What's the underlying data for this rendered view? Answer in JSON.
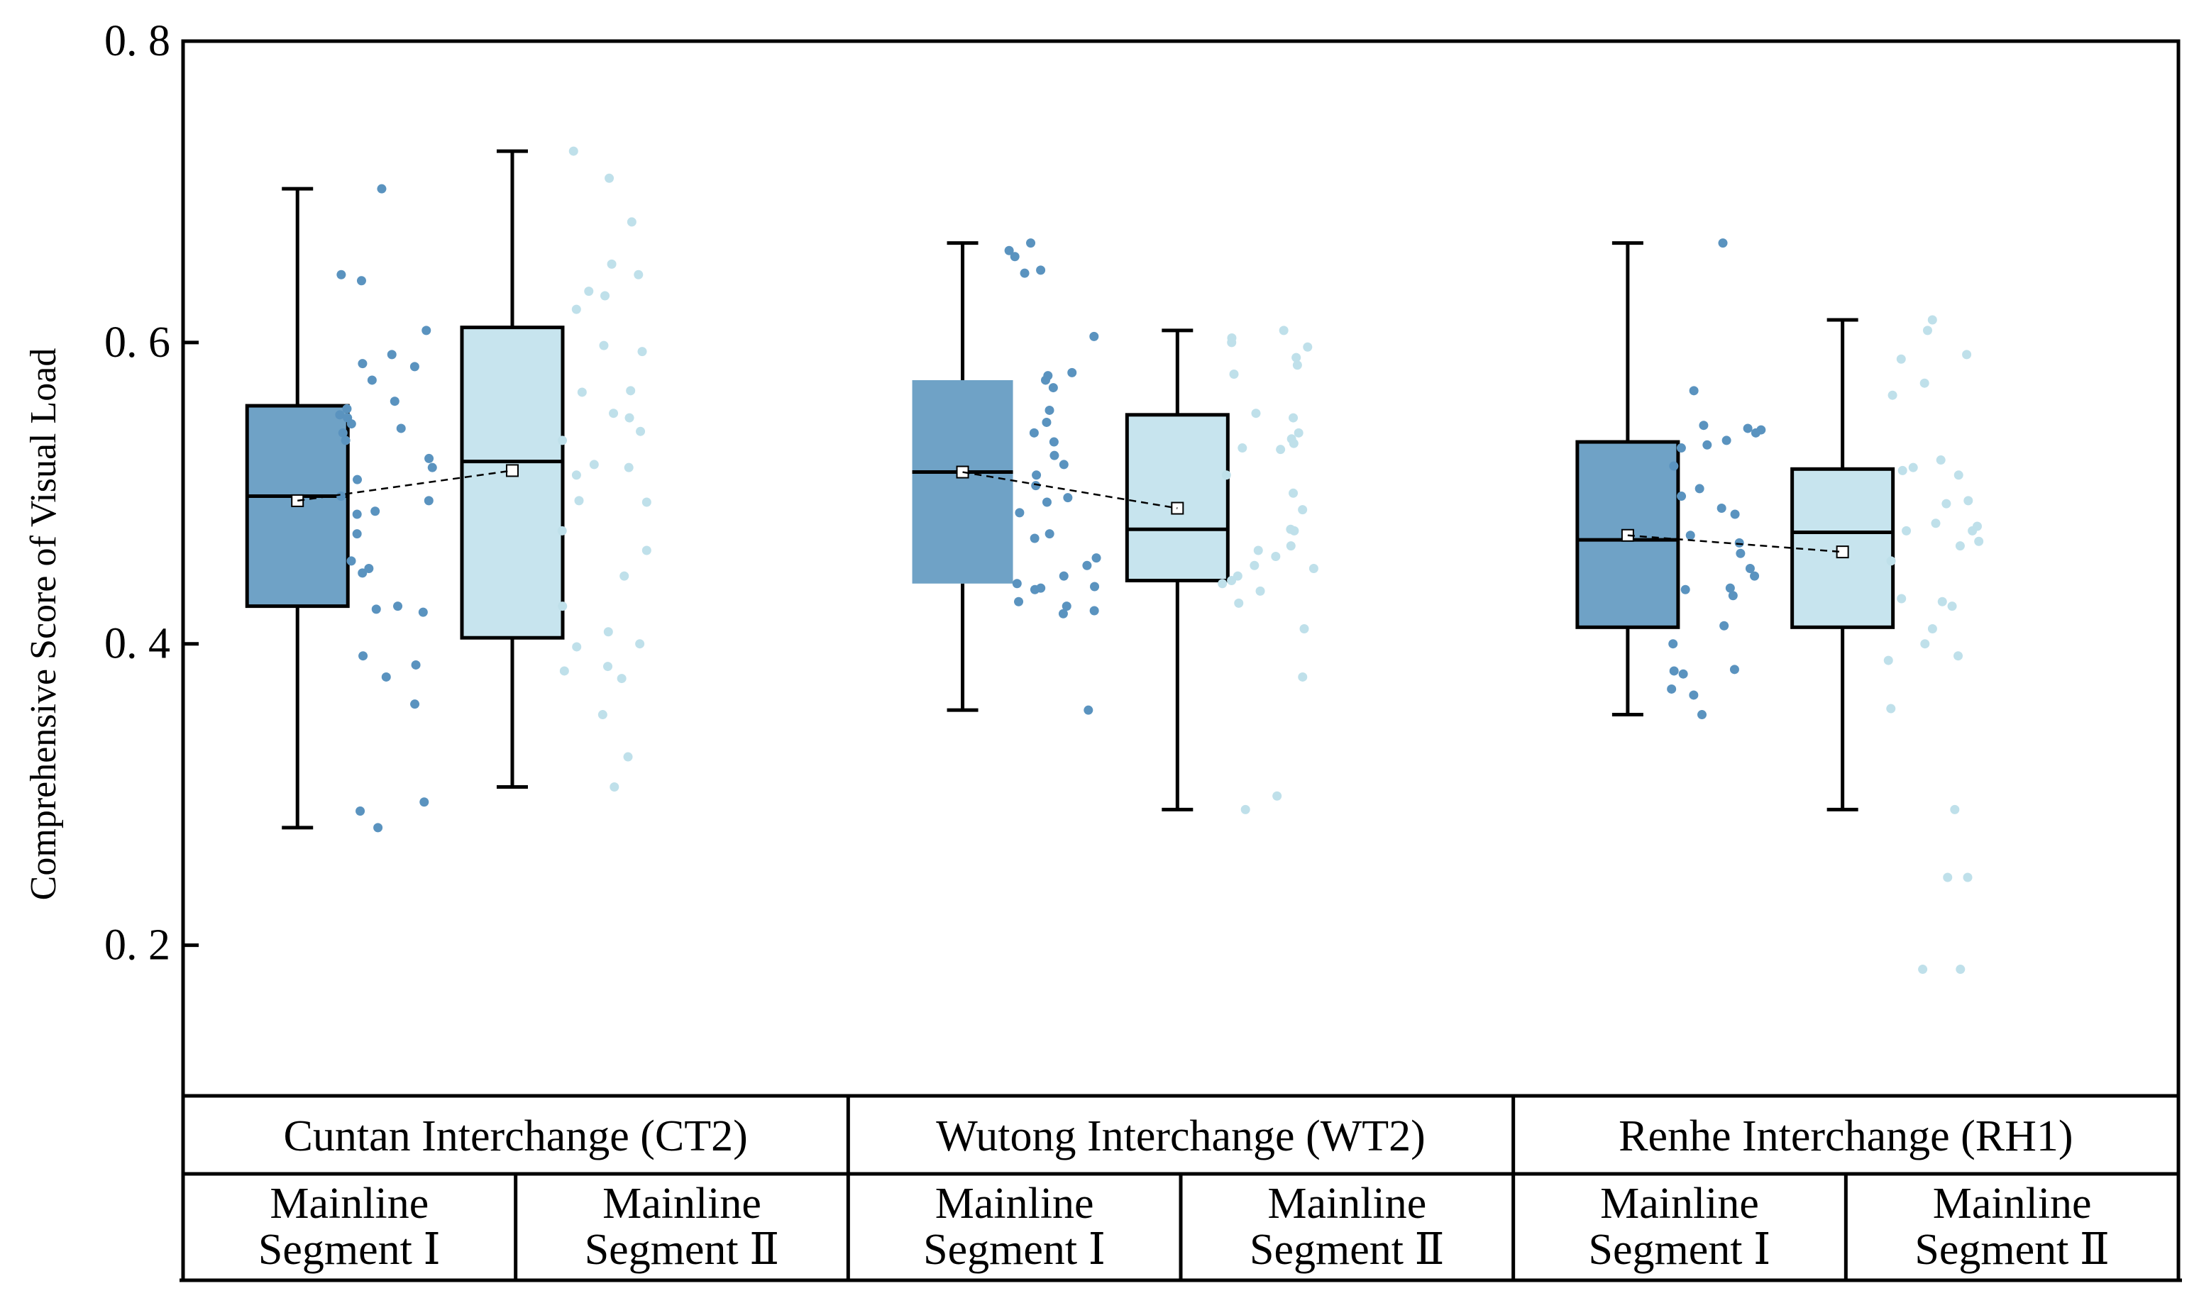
{
  "chart_data": {
    "type": "box",
    "ylabel": "Comprehensive Score of Visual Load",
    "ylim": [
      0.1,
      0.8
    ],
    "yticks": [
      0.2,
      0.4,
      0.6,
      0.8
    ],
    "ytick_labels": [
      "0. 2",
      "0. 4",
      "0. 6",
      "0. 8"
    ],
    "colors": {
      "segment_1": "#6fa2c6",
      "segment_2": "#c7e4ee",
      "points_segment_1": "#5a93bf",
      "points_segment_2": "#bfe0ea"
    },
    "groups": [
      {
        "label": "Cuntan Interchange (CT2)"
      },
      {
        "label": "Wutong Interchange (WT2)"
      },
      {
        "label": "Renhe Interchange (RH1)"
      }
    ],
    "boxes": [
      {
        "group": 0,
        "seg": 1,
        "label_line1": "Mainline",
        "label_line2": "Segment Ⅰ",
        "whisker_low": 0.278,
        "q1": 0.425,
        "median": 0.498,
        "q3": 0.558,
        "whisker_high": 0.702,
        "mean": 0.495,
        "points": [
          0.702,
          0.645,
          0.641,
          0.608,
          0.592,
          0.586,
          0.584,
          0.575,
          0.561,
          0.556,
          0.552,
          0.55,
          0.546,
          0.543,
          0.54,
          0.535,
          0.523,
          0.517,
          0.509,
          0.498,
          0.495,
          0.488,
          0.486,
          0.473,
          0.455,
          0.45,
          0.447,
          0.425,
          0.423,
          0.421,
          0.392,
          0.386,
          0.378,
          0.36,
          0.295,
          0.289,
          0.278
        ]
      },
      {
        "group": 0,
        "seg": 2,
        "label_line1": "Mainline",
        "label_line2": "Segment Ⅱ",
        "whisker_low": 0.305,
        "q1": 0.404,
        "median": 0.521,
        "q3": 0.61,
        "whisker_high": 0.727,
        "mean": 0.515,
        "points": [
          0.727,
          0.709,
          0.68,
          0.652,
          0.645,
          0.634,
          0.631,
          0.622,
          0.598,
          0.594,
          0.568,
          0.567,
          0.553,
          0.55,
          0.541,
          0.535,
          0.519,
          0.517,
          0.512,
          0.495,
          0.494,
          0.475,
          0.462,
          0.445,
          0.425,
          0.408,
          0.4,
          0.398,
          0.385,
          0.382,
          0.377,
          0.353,
          0.325,
          0.305
        ]
      },
      {
        "group": 1,
        "seg": 1,
        "label_line1": "Mainline",
        "label_line2": "Segment Ⅰ",
        "whisker_low": 0.356,
        "q1": 0.44,
        "median": 0.514,
        "q3": 0.575,
        "whisker_high": 0.666,
        "mean": 0.514,
        "points": [
          0.666,
          0.661,
          0.657,
          0.648,
          0.646,
          0.604,
          0.58,
          0.578,
          0.575,
          0.57,
          0.555,
          0.547,
          0.54,
          0.534,
          0.525,
          0.519,
          0.512,
          0.505,
          0.497,
          0.494,
          0.487,
          0.473,
          0.47,
          0.457,
          0.452,
          0.445,
          0.44,
          0.438,
          0.437,
          0.436,
          0.428,
          0.425,
          0.422,
          0.42,
          0.356
        ]
      },
      {
        "group": 1,
        "seg": 2,
        "label_line1": "Mainline",
        "label_line2": "Segment Ⅱ",
        "whisker_low": 0.29,
        "q1": 0.442,
        "median": 0.476,
        "q3": 0.552,
        "whisker_high": 0.608,
        "mean": 0.49,
        "points": [
          0.608,
          0.603,
          0.6,
          0.597,
          0.59,
          0.585,
          0.579,
          0.553,
          0.55,
          0.54,
          0.536,
          0.533,
          0.53,
          0.529,
          0.512,
          0.5,
          0.489,
          0.476,
          0.475,
          0.465,
          0.462,
          0.458,
          0.452,
          0.45,
          0.445,
          0.44,
          0.442,
          0.435,
          0.427,
          0.41,
          0.378,
          0.299,
          0.29
        ]
      },
      {
        "group": 2,
        "seg": 1,
        "label_line1": "Mainline",
        "label_line2": "Segment Ⅰ",
        "whisker_low": 0.353,
        "q1": 0.411,
        "median": 0.469,
        "q3": 0.534,
        "whisker_high": 0.666,
        "mean": 0.472,
        "points": [
          0.666,
          0.568,
          0.545,
          0.543,
          0.542,
          0.54,
          0.535,
          0.532,
          0.53,
          0.518,
          0.503,
          0.498,
          0.49,
          0.486,
          0.472,
          0.467,
          0.46,
          0.45,
          0.445,
          0.437,
          0.436,
          0.432,
          0.412,
          0.4,
          0.383,
          0.382,
          0.38,
          0.37,
          0.366,
          0.353
        ]
      },
      {
        "group": 2,
        "seg": 2,
        "label_line1": "Mainline",
        "label_line2": "Segment Ⅱ",
        "whisker_low": 0.29,
        "q1": 0.411,
        "median": 0.474,
        "q3": 0.516,
        "whisker_high": 0.615,
        "mean": 0.461,
        "points": [
          0.615,
          0.608,
          0.592,
          0.589,
          0.573,
          0.565,
          0.522,
          0.517,
          0.515,
          0.512,
          0.495,
          0.493,
          0.48,
          0.478,
          0.475,
          0.475,
          0.468,
          0.465,
          0.455,
          0.43,
          0.428,
          0.425,
          0.41,
          0.4,
          0.392,
          0.389,
          0.357,
          0.29,
          0.245,
          0.245,
          0.184,
          0.184
        ]
      }
    ]
  }
}
